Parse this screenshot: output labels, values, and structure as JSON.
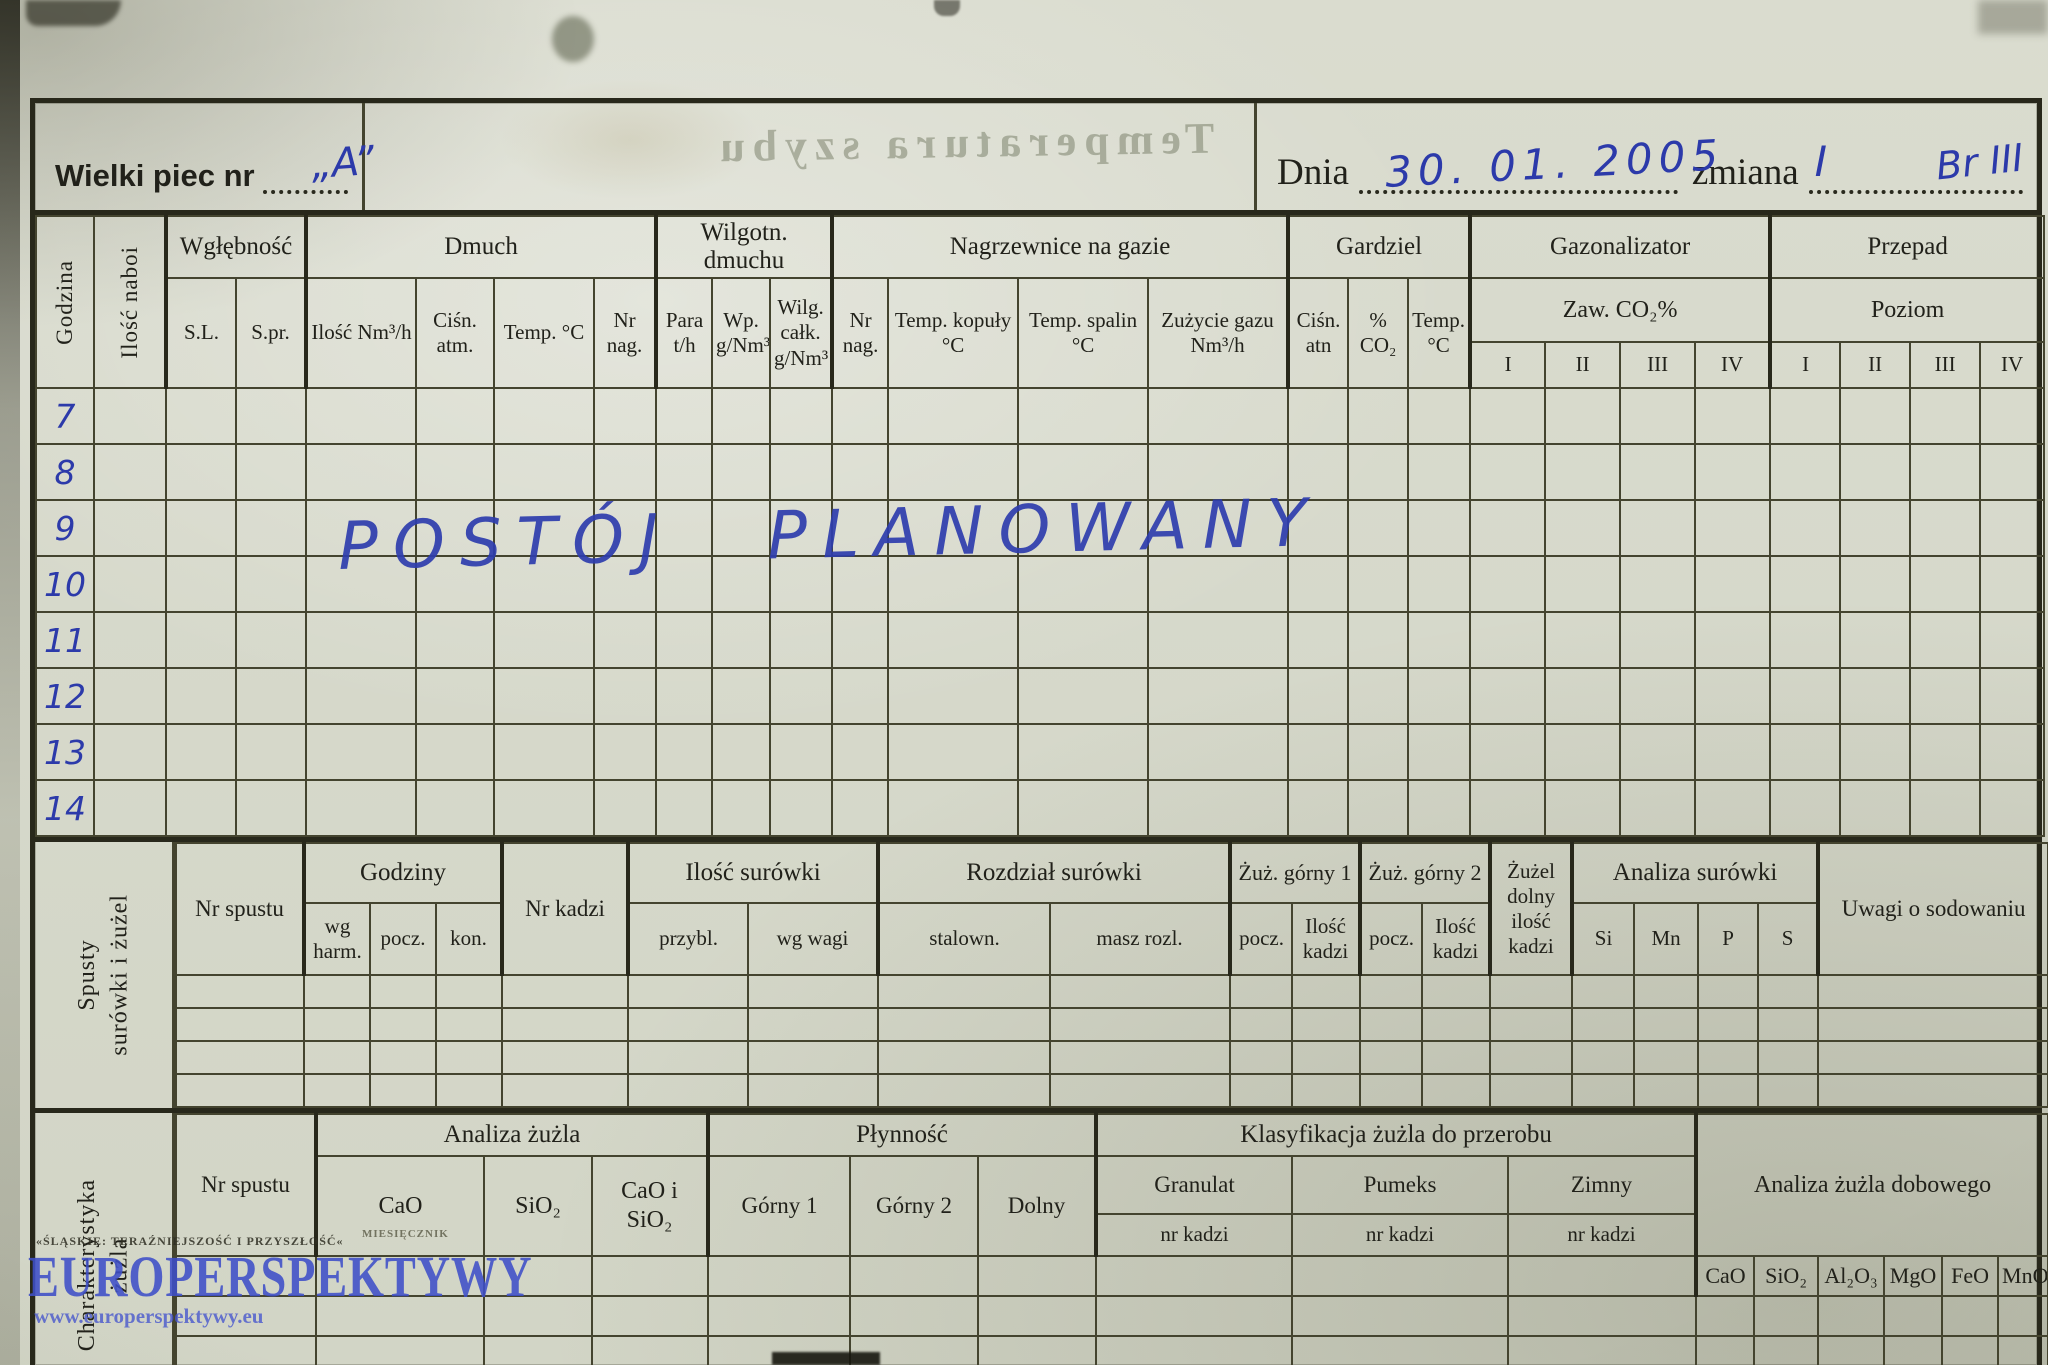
{
  "title": {
    "furnace_label": "Wielki piec nr",
    "furnace_number": "„A”",
    "ghost_text": "Temperatura szybu",
    "date_label": "Dnia",
    "date_value": "30. 01. 2005",
    "shift_label": "zmiana",
    "shift_value": "I",
    "shift_brigade": "Br III"
  },
  "hours": {
    "col_godzina": "Godzina",
    "col_naboje": "Ilość naboi",
    "groups": {
      "wglebnosc": {
        "label": "Wgłębność",
        "cols": [
          "S.L.",
          "S.pr."
        ]
      },
      "dmuch": {
        "label": "Dmuch",
        "cols": [
          "Ilość Nm³/h",
          "Ciśn. atm.",
          "Temp. °C",
          "Nr nag."
        ]
      },
      "wilgotn": {
        "label": "Wilgotn. dmuchu",
        "cols": [
          "Para t/h",
          "Wp. g/Nm³",
          "Wilg. całk. g/Nm³"
        ]
      },
      "nagrzewnice": {
        "label": "Nagrzewnice na gazie",
        "cols": [
          "Nr nag.",
          "Temp. kopuły °C",
          "Temp. spalin °C",
          "Zużycie gazu Nm³/h"
        ]
      },
      "gardziel": {
        "label": "Gardziel",
        "cols": [
          "Ciśn. atn",
          "% CO₂",
          "Temp. °C"
        ]
      },
      "gazonalizator": {
        "label": "Gazonalizator",
        "sub": "Zaw. CO₂%",
        "cols": [
          "I",
          "II",
          "III",
          "IV"
        ]
      },
      "przepad": {
        "label": "Przepad",
        "sub": "Poziom",
        "cols": [
          "I",
          "II",
          "III",
          "IV"
        ]
      }
    },
    "row_labels": [
      "7",
      "8",
      "9",
      "10",
      "11",
      "12",
      "13",
      "14"
    ],
    "annotation": "POSTÓJ PLANOWANY"
  },
  "spusty": {
    "side_label_line1": "Spusty",
    "side_label_line2": "surówki i żużel",
    "nr_spustu": "Nr spustu",
    "godziny": {
      "label": "Godziny",
      "cols": [
        "wg harm.",
        "pocz.",
        "kon."
      ]
    },
    "nr_kadzi": "Nr kadzi",
    "ilosc_surowki": {
      "label": "Ilość surówki",
      "cols": [
        "przybl.",
        "wg wagi"
      ]
    },
    "rozdzial_surowki": {
      "label": "Rozdział surówki",
      "cols": [
        "stalown.",
        "masz rozl."
      ]
    },
    "zuz_gorny1": {
      "label": "Żuż. górny 1",
      "cols": [
        "pocz.",
        "Ilość kadzi"
      ]
    },
    "zuz_gorny2": {
      "label": "Żuż. górny 2",
      "cols": [
        "pocz.",
        "Ilość kadzi"
      ]
    },
    "zuzel_dolny": "Żużel dolny ilość kadzi",
    "analiza_surowki": {
      "label": "Analiza surówki",
      "cols": [
        "Si",
        "Mn",
        "P",
        "S"
      ]
    },
    "uwagi": "Uwagi o sodowaniu"
  },
  "slag": {
    "side_label_line1": "Charakterystyka",
    "side_label_line2": "żużla",
    "nr_spustu": "Nr spustu",
    "analiza_zuzla": {
      "label": "Analiza żużla",
      "cols": [
        "CaO",
        "SiO₂",
        "CaO i SiO₂"
      ]
    },
    "plynnosc": {
      "label": "Płynność",
      "cols": [
        "Górny 1",
        "Górny 2",
        "Dolny"
      ]
    },
    "klasyfikacja": {
      "label": "Klasyfikacja żużla do przerobu",
      "cols": [
        "Granulat",
        "Pumeks",
        "Zimny"
      ],
      "sub": "nr kadzi"
    },
    "daily": {
      "label": "Analiza żużla dobowego",
      "cols": [
        "CaO",
        "SiO₂",
        "Al₂O₃",
        "MgO",
        "FeO",
        "MnO"
      ]
    }
  },
  "watermark": {
    "top_line": "«ŚLĄSKIE: TERAŹNIEJSZOŚĆ I PRZYSZŁOŚĆ«",
    "main": "EUROPERSPEKTYWY",
    "url": "www.europerspektywy.eu",
    "monthly": "MIESIĘCZNIK"
  }
}
